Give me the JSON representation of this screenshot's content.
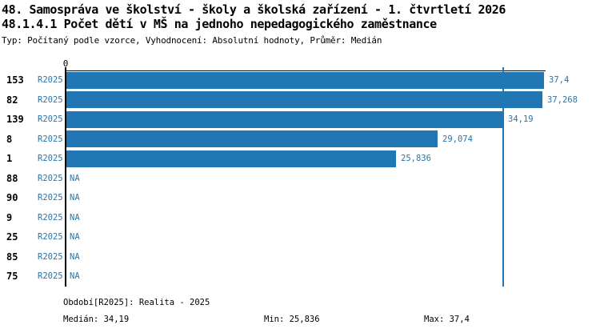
{
  "chart_data": {
    "type": "bar",
    "orientation": "horizontal",
    "title": "48. Samospráva ve školství - školy a školská zařízení - 1. čtvrtletí 2026",
    "subtitle": "48.1.4.1 Počet dětí v MŠ na jednoho nepedagogického zaměstnance",
    "meta": "Typ: Počítaný podle vzorce, Vyhodnocení: Absolutní hodnoty, Průměr: Medián",
    "x_axis": {
      "zero_label": "0",
      "xlim": [
        0,
        41.5
      ],
      "grid": false
    },
    "categories": [
      "153",
      "82",
      "139",
      "8",
      "1",
      "88",
      "90",
      "9",
      "25",
      "85",
      "75"
    ],
    "rows": [
      {
        "count": "153",
        "period": "R2025",
        "value": 37.4,
        "value_label": "37,4"
      },
      {
        "count": "82",
        "period": "R2025",
        "value": 37.268,
        "value_label": "37,268"
      },
      {
        "count": "139",
        "period": "R2025",
        "value": 34.19,
        "value_label": "34,19"
      },
      {
        "count": "8",
        "period": "R2025",
        "value": 29.074,
        "value_label": "29,074"
      },
      {
        "count": "1",
        "period": "R2025",
        "value": 25.836,
        "value_label": "25,836"
      },
      {
        "count": "88",
        "period": "R2025",
        "value": null,
        "value_label": "NA"
      },
      {
        "count": "90",
        "period": "R2025",
        "value": null,
        "value_label": "NA"
      },
      {
        "count": "9",
        "period": "R2025",
        "value": null,
        "value_label": "NA"
      },
      {
        "count": "25",
        "period": "R2025",
        "value": null,
        "value_label": "NA"
      },
      {
        "count": "85",
        "period": "R2025",
        "value": null,
        "value_label": "NA"
      },
      {
        "count": "75",
        "period": "R2025",
        "value": null,
        "value_label": "NA"
      }
    ],
    "median": 34.19,
    "stats": {
      "period_line": "Období[R2025]: Realita - 2025",
      "median_line": "Medián: 34,19",
      "min_line": "Min: 25,836",
      "max_line": "Max: 37,4"
    },
    "colors": {
      "bar": "#2077b4",
      "median_line": "#2077b4",
      "label_blue": "#2d74a4",
      "axis": "#000000"
    }
  }
}
